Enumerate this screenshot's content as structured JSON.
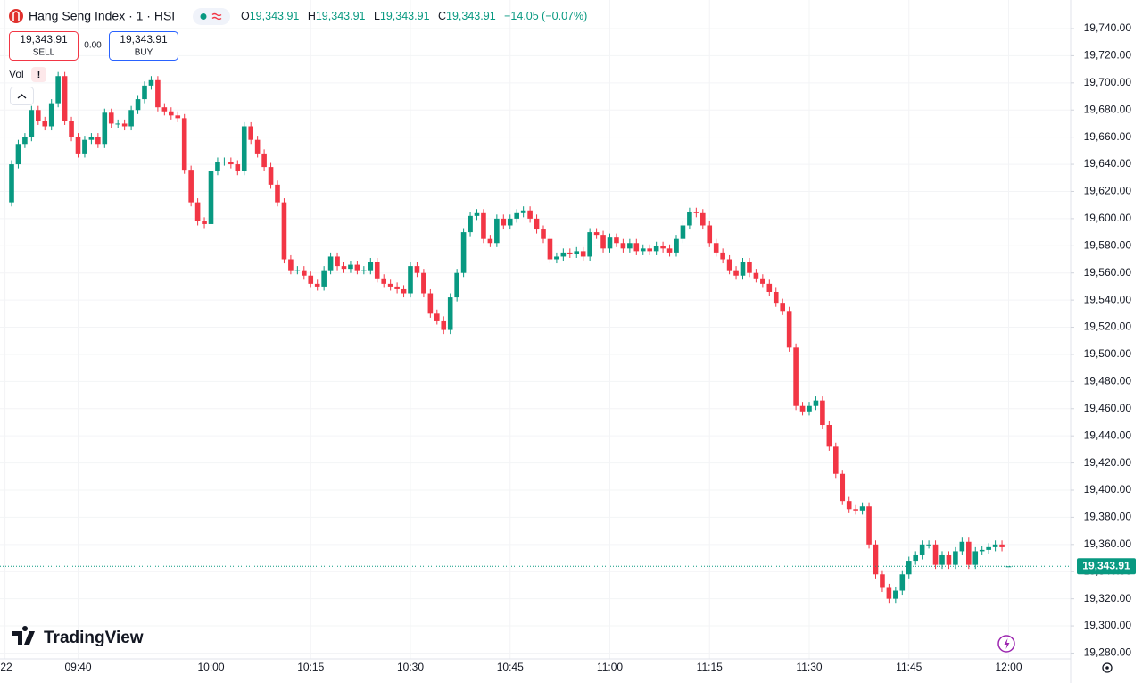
{
  "chart_data": {
    "type": "candlestick",
    "title": "Hang Seng Index · 1 · HSI",
    "legend": {
      "open_label": "O",
      "open": "19,343.91",
      "high_label": "H",
      "high": "19,343.91",
      "low_label": "L",
      "low": "19,343.91",
      "close_label": "C",
      "close": "19,343.91",
      "change": "−14.05 (−0.07%)"
    },
    "sell": {
      "price": "19,343.91",
      "label": "SELL"
    },
    "spread": "0.00",
    "buy": {
      "price": "19,343.91",
      "label": "BUY"
    },
    "volume_label": "Vol",
    "brand": "TradingView",
    "last_price_label": "19,343.91",
    "up_color": "#089981",
    "down_color": "#f23645",
    "ylim": [
      19275.7,
      19761.05
    ],
    "yticks": [
      {
        "value": 19280,
        "label": "19,280.00"
      },
      {
        "value": 19300,
        "label": "19,300.00"
      },
      {
        "value": 19320,
        "label": "19,320.00"
      },
      {
        "value": 19340,
        "label": "19,340.00"
      },
      {
        "value": 19360,
        "label": "19,360.00"
      },
      {
        "value": 19380,
        "label": "19,380.00"
      },
      {
        "value": 19400,
        "label": "19,400.00"
      },
      {
        "value": 19420,
        "label": "19,420.00"
      },
      {
        "value": 19440,
        "label": "19,440.00"
      },
      {
        "value": 19460,
        "label": "19,460.00"
      },
      {
        "value": 19480,
        "label": "19,480.00"
      },
      {
        "value": 19500,
        "label": "19,500.00"
      },
      {
        "value": 19520,
        "label": "19,520.00"
      },
      {
        "value": 19540,
        "label": "19,540.00"
      },
      {
        "value": 19560,
        "label": "19,560.00"
      },
      {
        "value": 19580,
        "label": "19,580.00"
      },
      {
        "value": 19600,
        "label": "19,600.00"
      },
      {
        "value": 19620,
        "label": "19,620.00"
      },
      {
        "value": 19640,
        "label": "19,640.00"
      },
      {
        "value": 19660,
        "label": "19,660.00"
      },
      {
        "value": 19680,
        "label": "19,680.00"
      },
      {
        "value": 19700,
        "label": "19,700.00"
      },
      {
        "value": 19720,
        "label": "19,720.00"
      },
      {
        "value": 19740,
        "label": "19,740.00"
      }
    ],
    "xticks": [
      {
        "value": "09:29",
        "label": "22"
      },
      "09:40",
      "10:00",
      "10:15",
      "10:30",
      "10:45",
      "11:00",
      "11:15",
      "11:30",
      "11:45",
      "12:00"
    ],
    "x": [
      "09:30",
      "09:31",
      "09:32",
      "09:33",
      "09:34",
      "09:35",
      "09:36",
      "09:37",
      "09:38",
      "09:39",
      "09:40",
      "09:41",
      "09:42",
      "09:43",
      "09:44",
      "09:45",
      "09:46",
      "09:47",
      "09:48",
      "09:49",
      "09:50",
      "09:51",
      "09:52",
      "09:53",
      "09:54",
      "09:55",
      "09:56",
      "09:57",
      "09:58",
      "09:59",
      "10:00",
      "10:01",
      "10:02",
      "10:03",
      "10:04",
      "10:05",
      "10:06",
      "10:07",
      "10:08",
      "10:09",
      "10:10",
      "10:11",
      "10:12",
      "10:13",
      "10:14",
      "10:15",
      "10:16",
      "10:17",
      "10:18",
      "10:19",
      "10:20",
      "10:21",
      "10:22",
      "10:23",
      "10:24",
      "10:25",
      "10:26",
      "10:27",
      "10:28",
      "10:29",
      "10:30",
      "10:31",
      "10:32",
      "10:33",
      "10:34",
      "10:35",
      "10:36",
      "10:37",
      "10:38",
      "10:39",
      "10:40",
      "10:41",
      "10:42",
      "10:43",
      "10:44",
      "10:45",
      "10:46",
      "10:47",
      "10:48",
      "10:49",
      "10:50",
      "10:51",
      "10:52",
      "10:53",
      "10:54",
      "10:55",
      "10:56",
      "10:57",
      "10:58",
      "10:59",
      "11:00",
      "11:01",
      "11:02",
      "11:03",
      "11:04",
      "11:05",
      "11:06",
      "11:07",
      "11:08",
      "11:09",
      "11:10",
      "11:11",
      "11:12",
      "11:13",
      "11:14",
      "11:15",
      "11:16",
      "11:17",
      "11:18",
      "11:19",
      "11:20",
      "11:21",
      "11:22",
      "11:23",
      "11:24",
      "11:25",
      "11:26",
      "11:27",
      "11:28",
      "11:29",
      "11:30",
      "11:31",
      "11:32",
      "11:33",
      "11:34",
      "11:35",
      "11:36",
      "11:37",
      "11:38",
      "11:39",
      "11:40",
      "11:41",
      "11:42",
      "11:43",
      "11:44",
      "11:45",
      "11:46",
      "11:47",
      "11:48",
      "11:49",
      "11:50",
      "11:51",
      "11:52",
      "11:53",
      "11:54",
      "11:55",
      "11:56",
      "11:57",
      "11:58",
      "11:59",
      "12:00"
    ],
    "open": [
      19612,
      19640,
      19655,
      19660,
      19680,
      19672,
      19668,
      19685,
      19705,
      19672,
      19660,
      19648,
      19658,
      19660,
      19655,
      19678,
      19670,
      19670,
      19668,
      19680,
      19688,
      19698,
      19702,
      19682,
      19679,
      19676,
      19674,
      19636,
      19612,
      19598,
      19596,
      19635,
      19642,
      19642,
      19640,
      19635,
      19668,
      19658,
      19648,
      19638,
      19625,
      19612,
      19570,
      19562,
      19562,
      19558,
      19552,
      19550,
      19562,
      19572,
      19565,
      19563,
      19566,
      19562,
      19562,
      19568,
      19556,
      19552,
      19550,
      19548,
      19545,
      19565,
      19560,
      19545,
      19530,
      19525,
      19518,
      19542,
      19560,
      19590,
      19602,
      19604,
      19585,
      19582,
      19600,
      19595,
      19600,
      19604,
      19606,
      19600,
      19592,
      19585,
      19570,
      19572,
      19575,
      19574,
      19576,
      19572,
      19590,
      19588,
      19578,
      19586,
      19582,
      19578,
      19582,
      19576,
      19578,
      19576,
      19580,
      19578,
      19575,
      19585,
      19595,
      19605,
      19604,
      19595,
      19582,
      19575,
      19570,
      19562,
      19558,
      19568,
      19560,
      19556,
      19552,
      19546,
      19538,
      19532,
      19505,
      19462,
      19458,
      19462,
      19466,
      19448,
      19432,
      19412,
      19392,
      19386,
      19385,
      19388,
      19360,
      19338,
      19328,
      19320,
      19326,
      19338,
      19348,
      19352,
      19360,
      19360,
      19345,
      19352,
      19345,
      19355,
      19362,
      19345,
      19355,
      19356,
      19358,
      19360,
      19343.91
    ],
    "high": [
      19643,
      19658,
      19663,
      19683,
      19683,
      19675,
      19688,
      19708,
      19708,
      19675,
      19663,
      19661,
      19663,
      19663,
      19681,
      19681,
      19673,
      19673,
      19683,
      19691,
      19701,
      19705,
      19705,
      19685,
      19682,
      19679,
      19677,
      19639,
      19615,
      19601,
      19638,
      19645,
      19645,
      19645,
      19643,
      19671,
      19671,
      19661,
      19651,
      19641,
      19628,
      19615,
      19573,
      19565,
      19565,
      19561,
      19555,
      19565,
      19575,
      19575,
      19568,
      19569,
      19569,
      19565,
      19571,
      19571,
      19559,
      19555,
      19553,
      19551,
      19568,
      19568,
      19563,
      19548,
      19533,
      19528,
      19545,
      19563,
      19593,
      19605,
      19607,
      19607,
      19588,
      19603,
      19603,
      19603,
      19607,
      19609,
      19609,
      19603,
      19595,
      19588,
      19575,
      19578,
      19578,
      19579,
      19579,
      19593,
      19593,
      19591,
      19589,
      19589,
      19585,
      19585,
      19585,
      19581,
      19581,
      19583,
      19583,
      19581,
      19588,
      19598,
      19608,
      19608,
      19607,
      19598,
      19585,
      19578,
      19573,
      19565,
      19571,
      19571,
      19563,
      19559,
      19555,
      19549,
      19541,
      19535,
      19508,
      19465,
      19465,
      19469,
      19469,
      19451,
      19435,
      19415,
      19395,
      19389,
      19391,
      19391,
      19363,
      19341,
      19331,
      19329,
      19341,
      19351,
      19355,
      19363,
      19363,
      19363,
      19355,
      19355,
      19358,
      19365,
      19365,
      19358,
      19359,
      19361,
      19363,
      19363,
      19343.91
    ],
    "low": [
      19609,
      19637,
      19652,
      19657,
      19669,
      19665,
      19665,
      19682,
      19669,
      19657,
      19645,
      19645,
      19655,
      19652,
      19652,
      19667,
      19667,
      19665,
      19665,
      19677,
      19685,
      19695,
      19679,
      19676,
      19673,
      19671,
      19633,
      19609,
      19595,
      19593,
      19593,
      19632,
      19639,
      19637,
      19632,
      19632,
      19655,
      19645,
      19635,
      19622,
      19609,
      19567,
      19559,
      19559,
      19555,
      19549,
      19547,
      19547,
      19559,
      19562,
      19560,
      19560,
      19559,
      19559,
      19559,
      19553,
      19549,
      19547,
      19545,
      19542,
      19542,
      19557,
      19542,
      19527,
      19522,
      19515,
      19515,
      19539,
      19557,
      19587,
      19599,
      19582,
      19579,
      19579,
      19592,
      19592,
      19597,
      19601,
      19597,
      19589,
      19582,
      19567,
      19567,
      19569,
      19571,
      19571,
      19569,
      19569,
      19585,
      19575,
      19575,
      19579,
      19575,
      19575,
      19573,
      19573,
      19573,
      19573,
      19575,
      19572,
      19572,
      19582,
      19592,
      19601,
      19592,
      19579,
      19572,
      19567,
      19559,
      19555,
      19555,
      19557,
      19553,
      19549,
      19543,
      19535,
      19529,
      19502,
      19459,
      19455,
      19455,
      19459,
      19445,
      19429,
      19409,
      19389,
      19383,
      19382,
      19382,
      19357,
      19335,
      19325,
      19317,
      19317,
      19323,
      19335,
      19345,
      19349,
      19357,
      19342,
      19342,
      19342,
      19342,
      19352,
      19342,
      19342,
      19352,
      19353,
      19355,
      19354.96,
      19343.91
    ],
    "close": [
      19640,
      19655,
      19660,
      19680,
      19672,
      19668,
      19685,
      19705,
      19672,
      19660,
      19648,
      19658,
      19660,
      19655,
      19678,
      19670,
      19670,
      19668,
      19680,
      19688,
      19698,
      19702,
      19682,
      19679,
      19676,
      19674,
      19636,
      19612,
      19598,
      19596,
      19635,
      19642,
      19642,
      19640,
      19635,
      19668,
      19658,
      19648,
      19638,
      19625,
      19612,
      19570,
      19562,
      19562,
      19558,
      19552,
      19550,
      19562,
      19572,
      19565,
      19563,
      19566,
      19562,
      19562,
      19568,
      19556,
      19552,
      19550,
      19548,
      19545,
      19565,
      19560,
      19545,
      19530,
      19525,
      19518,
      19542,
      19560,
      19590,
      19602,
      19604,
      19585,
      19582,
      19600,
      19595,
      19600,
      19604,
      19606,
      19600,
      19592,
      19585,
      19570,
      19572,
      19575,
      19574,
      19576,
      19572,
      19590,
      19588,
      19578,
      19586,
      19582,
      19578,
      19582,
      19576,
      19578,
      19576,
      19580,
      19578,
      19575,
      19585,
      19595,
      19605,
      19604,
      19595,
      19582,
      19575,
      19570,
      19562,
      19558,
      19568,
      19560,
      19556,
      19552,
      19546,
      19538,
      19532,
      19505,
      19462,
      19458,
      19462,
      19466,
      19448,
      19432,
      19412,
      19392,
      19386,
      19385,
      19388,
      19360,
      19338,
      19328,
      19320,
      19326,
      19338,
      19348,
      19352,
      19360,
      19360,
      19345,
      19352,
      19345,
      19355,
      19362,
      19345,
      19355,
      19356,
      19358,
      19360,
      19357.96,
      19343.91
    ]
  }
}
